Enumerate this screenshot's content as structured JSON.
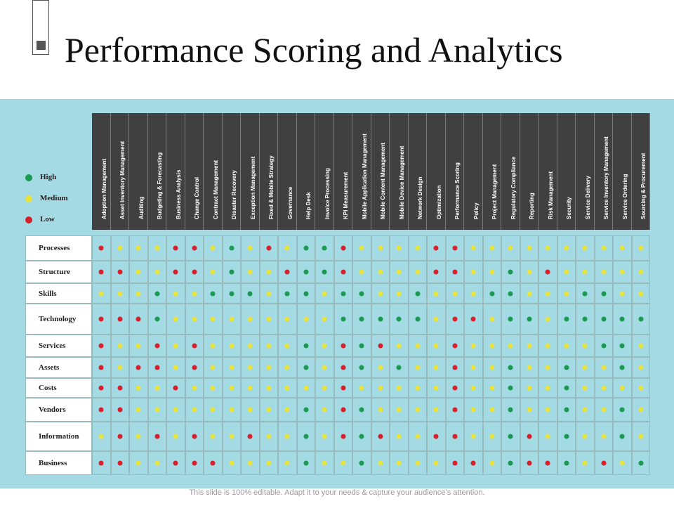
{
  "title": "Performance Scoring and Analytics",
  "footer": "This slide is 100% editable. Adapt it to your needs & capture your audience’s attention.",
  "colors": {
    "band": "#a3dae3",
    "header": "#404040",
    "H": "#1a9a50",
    "M": "#e9e33a",
    "L": "#d81f2a"
  },
  "legend": [
    {
      "key": "H",
      "label": "High"
    },
    {
      "key": "M",
      "label": "Medium"
    },
    {
      "key": "L",
      "label": "Low"
    }
  ],
  "columns": [
    "Adoption Management",
    "Asset Inventory Management",
    "Auditing",
    "Budgeting & Forecasting",
    "Business Analysis",
    "Change Control",
    "Contract Management",
    "Disaster Recovery",
    "Exception Management",
    "Fixed & Mobile Strategy",
    "Governance",
    "Help Desk",
    "Invoice Processing",
    "KPI Measurement",
    "Mobile Application Management",
    "Mobile Content Management",
    "Mobile Device Management",
    "Network Design",
    "Optimization",
    "Performance Scoring",
    "Policy",
    "Project Management",
    "Regulatory Compliance",
    "Reporting",
    "Risk Management",
    "Security",
    "Service Delivery",
    "Service Inventory Management",
    "Service Ordering",
    "Sourcing & Procurement"
  ],
  "rows": [
    {
      "label": "Processes",
      "values": [
        "L",
        "M",
        "M",
        "M",
        "L",
        "L",
        "M",
        "H",
        "M",
        "L",
        "M",
        "H",
        "H",
        "L",
        "M",
        "M",
        "M",
        "M",
        "L",
        "L",
        "M",
        "M",
        "M",
        "M",
        "M",
        "M",
        "M",
        "M",
        "M",
        "M"
      ]
    },
    {
      "label": "Structure",
      "values": [
        "L",
        "L",
        "M",
        "M",
        "L",
        "L",
        "M",
        "H",
        "M",
        "M",
        "L",
        "H",
        "H",
        "L",
        "M",
        "M",
        "M",
        "M",
        "L",
        "L",
        "M",
        "M",
        "H",
        "M",
        "L",
        "M",
        "M",
        "M",
        "M",
        "M"
      ]
    },
    {
      "label": "Skills",
      "values": [
        "M",
        "M",
        "M",
        "H",
        "M",
        "M",
        "H",
        "H",
        "H",
        "M",
        "H",
        "H",
        "M",
        "H",
        "H",
        "M",
        "M",
        "H",
        "M",
        "M",
        "M",
        "H",
        "H",
        "M",
        "M",
        "M",
        "H",
        "H",
        "M",
        "M"
      ]
    },
    {
      "label": "Technology",
      "values": [
        "L",
        "L",
        "L",
        "H",
        "M",
        "M",
        "M",
        "M",
        "M",
        "M",
        "M",
        "M",
        "M",
        "H",
        "H",
        "H",
        "H",
        "H",
        "M",
        "L",
        "L",
        "M",
        "H",
        "H",
        "M",
        "H",
        "H",
        "H",
        "H",
        "H"
      ]
    },
    {
      "label": "Services",
      "values": [
        "L",
        "M",
        "M",
        "L",
        "M",
        "L",
        "M",
        "M",
        "M",
        "M",
        "M",
        "H",
        "M",
        "L",
        "H",
        "L",
        "M",
        "M",
        "M",
        "L",
        "M",
        "M",
        "M",
        "M",
        "M",
        "M",
        "M",
        "H",
        "H",
        "M"
      ]
    },
    {
      "label": "Assets",
      "values": [
        "L",
        "M",
        "L",
        "L",
        "M",
        "L",
        "M",
        "M",
        "M",
        "M",
        "M",
        "H",
        "M",
        "L",
        "H",
        "M",
        "H",
        "M",
        "M",
        "L",
        "M",
        "M",
        "H",
        "M",
        "M",
        "H",
        "M",
        "M",
        "H",
        "M"
      ]
    },
    {
      "label": "Costs",
      "values": [
        "L",
        "L",
        "M",
        "M",
        "L",
        "M",
        "M",
        "M",
        "M",
        "M",
        "M",
        "M",
        "M",
        "L",
        "M",
        "M",
        "M",
        "M",
        "M",
        "L",
        "M",
        "M",
        "H",
        "M",
        "M",
        "H",
        "M",
        "M",
        "M",
        "M"
      ]
    },
    {
      "label": "Vendors",
      "values": [
        "L",
        "L",
        "M",
        "M",
        "M",
        "M",
        "M",
        "M",
        "M",
        "M",
        "M",
        "H",
        "M",
        "L",
        "H",
        "M",
        "M",
        "M",
        "M",
        "L",
        "M",
        "M",
        "H",
        "M",
        "M",
        "H",
        "M",
        "M",
        "H",
        "M"
      ]
    },
    {
      "label": "Information",
      "values": [
        "M",
        "L",
        "M",
        "L",
        "M",
        "L",
        "M",
        "M",
        "L",
        "M",
        "M",
        "H",
        "M",
        "L",
        "H",
        "L",
        "M",
        "M",
        "L",
        "L",
        "M",
        "M",
        "H",
        "L",
        "M",
        "H",
        "M",
        "M",
        "H",
        "M"
      ]
    },
    {
      "label": "Business",
      "values": [
        "L",
        "L",
        "M",
        "M",
        "L",
        "L",
        "L",
        "M",
        "M",
        "M",
        "M",
        "H",
        "M",
        "M",
        "H",
        "M",
        "M",
        "M",
        "M",
        "L",
        "L",
        "M",
        "H",
        "L",
        "L",
        "H",
        "M",
        "L",
        "M",
        "H"
      ]
    }
  ]
}
